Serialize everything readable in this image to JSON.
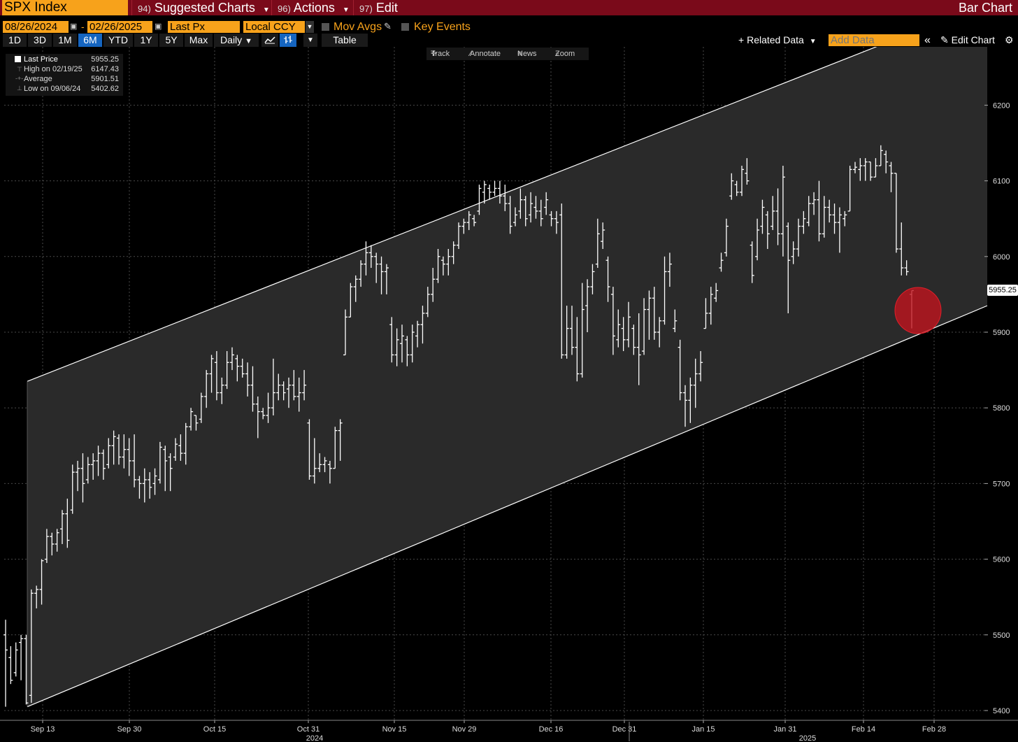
{
  "topbar": {
    "ticker": "SPX Index",
    "menus": [
      {
        "num": "94)",
        "label": "Suggested Charts"
      },
      {
        "num": "96)",
        "label": "Actions"
      },
      {
        "num": "97)",
        "label": "Edit"
      }
    ],
    "chart_kind": "Bar Chart"
  },
  "controls": {
    "start_date": "08/26/2024",
    "end_date": "02/26/2025",
    "field": "Last Px",
    "currency": "Local CCY",
    "mov_avgs": "Mov Avgs",
    "key_events": "Key Events"
  },
  "ranges": [
    "1D",
    "3D",
    "1M",
    "6M",
    "YTD",
    "1Y",
    "5Y",
    "Max"
  ],
  "active_range": "6M",
  "frequency": "Daily",
  "table_label": "Table",
  "related_data": "Related Data",
  "add_data_placeholder": "Add Data",
  "edit_chart": "Edit Chart",
  "chart_tools": [
    "Track",
    "Annotate",
    "News",
    "Zoom"
  ],
  "legend": {
    "rows": [
      {
        "label": "Last Price",
        "value": "5955.25"
      },
      {
        "label": "High on 02/19/25",
        "value": "6147.43"
      },
      {
        "label": "Average",
        "value": "5901.51"
      },
      {
        "label": "Low on 09/06/24",
        "value": "5402.62"
      }
    ]
  },
  "last_price_tag": "5955.25",
  "colors": {
    "accent_orange": "#f7a21b",
    "top_bar_red": "#7a0a1a",
    "active_blue": "#1565c0",
    "highlight_circle": "#c0141e"
  },
  "chart_data": {
    "type": "bar",
    "style": "ohlc",
    "title": "",
    "ylim": [
      5395,
      6270
    ],
    "y_ticks": [
      5400,
      5500,
      5600,
      5700,
      5800,
      5900,
      6000,
      6100,
      6200
    ],
    "x_ticks": [
      "Sep 13",
      "Sep 30",
      "Oct 15",
      "Oct 31",
      "Nov 15",
      "Nov 29",
      "Dec 16",
      "Dec 31",
      "Jan 15",
      "Jan 31",
      "Feb 14",
      "Feb 28"
    ],
    "year_labels": [
      "2024",
      "2025"
    ],
    "grid": true,
    "channel": {
      "upper": [
        5835,
        6335
      ],
      "lower": [
        5405,
        5935
      ]
    },
    "bars": [
      {
        "h": 5520,
        "l": 5405,
        "o": 5500,
        "c": 5480
      },
      {
        "h": 5485,
        "l": 5435,
        "o": 5470,
        "c": 5440
      },
      {
        "h": 5490,
        "l": 5445,
        "o": 5450,
        "c": 5480
      },
      {
        "h": 5500,
        "l": 5440,
        "o": 5490,
        "c": 5495
      },
      {
        "h": 5500,
        "l": 5408,
        "o": 5495,
        "c": 5410
      },
      {
        "h": 5560,
        "l": 5410,
        "o": 5420,
        "c": 5555
      },
      {
        "h": 5565,
        "l": 5535,
        "o": 5555,
        "c": 5560
      },
      {
        "h": 5600,
        "l": 5540,
        "o": 5560,
        "c": 5598
      },
      {
        "h": 5640,
        "l": 5595,
        "o": 5600,
        "c": 5630
      },
      {
        "h": 5635,
        "l": 5605,
        "o": 5630,
        "c": 5620
      },
      {
        "h": 5640,
        "l": 5610,
        "o": 5620,
        "c": 5635
      },
      {
        "h": 5665,
        "l": 5620,
        "o": 5640,
        "c": 5660
      },
      {
        "h": 5680,
        "l": 5615,
        "o": 5660,
        "c": 5625
      },
      {
        "h": 5725,
        "l": 5660,
        "o": 5665,
        "c": 5715
      },
      {
        "h": 5730,
        "l": 5690,
        "o": 5715,
        "c": 5720
      },
      {
        "h": 5740,
        "l": 5675,
        "o": 5720,
        "c": 5700
      },
      {
        "h": 5735,
        "l": 5700,
        "o": 5705,
        "c": 5725
      },
      {
        "h": 5740,
        "l": 5705,
        "o": 5725,
        "c": 5730
      },
      {
        "h": 5750,
        "l": 5710,
        "o": 5730,
        "c": 5740
      },
      {
        "h": 5745,
        "l": 5705,
        "o": 5740,
        "c": 5720
      },
      {
        "h": 5760,
        "l": 5720,
        "o": 5725,
        "c": 5750
      },
      {
        "h": 5770,
        "l": 5725,
        "o": 5750,
        "c": 5762
      },
      {
        "h": 5765,
        "l": 5725,
        "o": 5760,
        "c": 5735
      },
      {
        "h": 5765,
        "l": 5720,
        "o": 5735,
        "c": 5745
      },
      {
        "h": 5760,
        "l": 5710,
        "o": 5745,
        "c": 5730
      },
      {
        "h": 5765,
        "l": 5695,
        "o": 5730,
        "c": 5705
      },
      {
        "h": 5710,
        "l": 5680,
        "o": 5705,
        "c": 5700
      },
      {
        "h": 5720,
        "l": 5675,
        "o": 5700,
        "c": 5705
      },
      {
        "h": 5715,
        "l": 5680,
        "o": 5705,
        "c": 5695
      },
      {
        "h": 5720,
        "l": 5685,
        "o": 5700,
        "c": 5710
      },
      {
        "h": 5755,
        "l": 5700,
        "o": 5705,
        "c": 5748
      },
      {
        "h": 5750,
        "l": 5690,
        "o": 5745,
        "c": 5730
      },
      {
        "h": 5740,
        "l": 5690,
        "o": 5735,
        "c": 5720
      },
      {
        "h": 5760,
        "l": 5730,
        "o": 5735,
        "c": 5752
      },
      {
        "h": 5765,
        "l": 5730,
        "o": 5750,
        "c": 5740
      },
      {
        "h": 5780,
        "l": 5725,
        "o": 5740,
        "c": 5775
      },
      {
        "h": 5800,
        "l": 5770,
        "o": 5775,
        "c": 5795
      },
      {
        "h": 5790,
        "l": 5770,
        "o": 5790,
        "c": 5780
      },
      {
        "h": 5820,
        "l": 5780,
        "o": 5785,
        "c": 5815
      },
      {
        "h": 5850,
        "l": 5800,
        "o": 5815,
        "c": 5845
      },
      {
        "h": 5870,
        "l": 5820,
        "o": 5845,
        "c": 5865
      },
      {
        "h": 5875,
        "l": 5810,
        "o": 5860,
        "c": 5820
      },
      {
        "h": 5840,
        "l": 5805,
        "o": 5820,
        "c": 5830
      },
      {
        "h": 5875,
        "l": 5825,
        "o": 5830,
        "c": 5860
      },
      {
        "h": 5880,
        "l": 5850,
        "o": 5860,
        "c": 5870
      },
      {
        "h": 5870,
        "l": 5835,
        "o": 5865,
        "c": 5855
      },
      {
        "h": 5865,
        "l": 5840,
        "o": 5855,
        "c": 5845
      },
      {
        "h": 5860,
        "l": 5815,
        "o": 5845,
        "c": 5830
      },
      {
        "h": 5855,
        "l": 5795,
        "o": 5830,
        "c": 5805
      },
      {
        "h": 5815,
        "l": 5760,
        "o": 5805,
        "c": 5795
      },
      {
        "h": 5800,
        "l": 5785,
        "o": 5795,
        "c": 5790
      },
      {
        "h": 5820,
        "l": 5780,
        "o": 5790,
        "c": 5800
      },
      {
        "h": 5865,
        "l": 5790,
        "o": 5800,
        "c": 5820
      },
      {
        "h": 5845,
        "l": 5810,
        "o": 5820,
        "c": 5830
      },
      {
        "h": 5835,
        "l": 5810,
        "o": 5830,
        "c": 5820
      },
      {
        "h": 5840,
        "l": 5800,
        "o": 5825,
        "c": 5830
      },
      {
        "h": 5850,
        "l": 5810,
        "o": 5830,
        "c": 5815
      },
      {
        "h": 5840,
        "l": 5795,
        "o": 5815,
        "c": 5820
      },
      {
        "h": 5850,
        "l": 5810,
        "o": 5820,
        "c": 5830
      },
      {
        "h": 5785,
        "l": 5705,
        "o": 5780,
        "c": 5710
      },
      {
        "h": 5760,
        "l": 5700,
        "o": 5710,
        "c": 5720
      },
      {
        "h": 5740,
        "l": 5715,
        "o": 5720,
        "c": 5725
      },
      {
        "h": 5735,
        "l": 5715,
        "o": 5725,
        "c": 5730
      },
      {
        "h": 5730,
        "l": 5700,
        "o": 5725,
        "c": 5720
      },
      {
        "h": 5775,
        "l": 5720,
        "o": 5720,
        "c": 5770
      },
      {
        "h": 5785,
        "l": 5730,
        "o": 5770,
        "c": 5780
      },
      {
        "h": 5930,
        "l": 5870,
        "o": 5870,
        "c": 5920
      },
      {
        "h": 5965,
        "l": 5920,
        "o": 5920,
        "c": 5960
      },
      {
        "h": 5975,
        "l": 5940,
        "o": 5960,
        "c": 5970
      },
      {
        "h": 5995,
        "l": 5960,
        "o": 5970,
        "c": 5990
      },
      {
        "h": 6020,
        "l": 5975,
        "o": 5990,
        "c": 6005
      },
      {
        "h": 6015,
        "l": 5985,
        "o": 6005,
        "c": 6000
      },
      {
        "h": 6005,
        "l": 5965,
        "o": 6000,
        "c": 5990
      },
      {
        "h": 6000,
        "l": 5950,
        "o": 5990,
        "c": 5980
      },
      {
        "h": 5990,
        "l": 5950,
        "o": 5980,
        "c": 5985
      },
      {
        "h": 5920,
        "l": 5860,
        "o": 5910,
        "c": 5870
      },
      {
        "h": 5905,
        "l": 5855,
        "o": 5870,
        "c": 5890
      },
      {
        "h": 5910,
        "l": 5860,
        "o": 5885,
        "c": 5895
      },
      {
        "h": 5895,
        "l": 5855,
        "o": 5890,
        "c": 5870
      },
      {
        "h": 5910,
        "l": 5860,
        "o": 5870,
        "c": 5900
      },
      {
        "h": 5915,
        "l": 5880,
        "o": 5895,
        "c": 5910
      },
      {
        "h": 5935,
        "l": 5885,
        "o": 5910,
        "c": 5925
      },
      {
        "h": 5960,
        "l": 5920,
        "o": 5925,
        "c": 5950
      },
      {
        "h": 5985,
        "l": 5940,
        "o": 5950,
        "c": 5970
      },
      {
        "h": 6010,
        "l": 5965,
        "o": 5970,
        "c": 6000
      },
      {
        "h": 6000,
        "l": 5975,
        "o": 5995,
        "c": 5990
      },
      {
        "h": 6010,
        "l": 5975,
        "o": 5990,
        "c": 6000
      },
      {
        "h": 6020,
        "l": 5990,
        "o": 6000,
        "c": 6015
      },
      {
        "h": 6045,
        "l": 6010,
        "o": 6015,
        "c": 6040
      },
      {
        "h": 6050,
        "l": 6030,
        "o": 6040,
        "c": 6045
      },
      {
        "h": 6060,
        "l": 6035,
        "o": 6045,
        "c": 6055
      },
      {
        "h": 6055,
        "l": 6040,
        "o": 6050,
        "c": 6045
      },
      {
        "h": 6095,
        "l": 6055,
        "o": 6060,
        "c": 6090
      },
      {
        "h": 6100,
        "l": 6070,
        "o": 6085,
        "c": 6095
      },
      {
        "h": 6095,
        "l": 6075,
        "o": 6090,
        "c": 6085
      },
      {
        "h": 6100,
        "l": 6080,
        "o": 6085,
        "c": 6090
      },
      {
        "h": 6100,
        "l": 6070,
        "o": 6090,
        "c": 6080
      },
      {
        "h": 6095,
        "l": 6060,
        "o": 6080,
        "c": 6070
      },
      {
        "h": 6080,
        "l": 6030,
        "o": 6070,
        "c": 6040
      },
      {
        "h": 6065,
        "l": 6040,
        "o": 6045,
        "c": 6055
      },
      {
        "h": 6090,
        "l": 6050,
        "o": 6060,
        "c": 6075
      },
      {
        "h": 6080,
        "l": 6040,
        "o": 6075,
        "c": 6050
      },
      {
        "h": 6085,
        "l": 6045,
        "o": 6055,
        "c": 6070
      },
      {
        "h": 6080,
        "l": 6050,
        "o": 6065,
        "c": 6060
      },
      {
        "h": 6075,
        "l": 6040,
        "o": 6060,
        "c": 6050
      },
      {
        "h": 6085,
        "l": 6055,
        "o": 6065,
        "c": 6075
      },
      {
        "h": 6060,
        "l": 6040,
        "o": 6055,
        "c": 6050
      },
      {
        "h": 6060,
        "l": 6030,
        "o": 6050,
        "c": 6045
      },
      {
        "h": 6070,
        "l": 5865,
        "o": 6055,
        "c": 5870
      },
      {
        "h": 5935,
        "l": 5865,
        "o": 5870,
        "c": 5905
      },
      {
        "h": 5935,
        "l": 5870,
        "o": 5905,
        "c": 5880
      },
      {
        "h": 5920,
        "l": 5835,
        "o": 5880,
        "c": 5845
      },
      {
        "h": 5965,
        "l": 5840,
        "o": 5845,
        "c": 5930
      },
      {
        "h": 5970,
        "l": 5900,
        "o": 5935,
        "c": 5960
      },
      {
        "h": 5990,
        "l": 5950,
        "o": 5960,
        "c": 5980
      },
      {
        "h": 6050,
        "l": 5985,
        "o": 5990,
        "c": 6030
      },
      {
        "h": 6045,
        "l": 6010,
        "o": 6020,
        "c": 6035
      },
      {
        "h": 6000,
        "l": 5940,
        "o": 5995,
        "c": 5960
      },
      {
        "h": 5960,
        "l": 5870,
        "o": 5950,
        "c": 5895
      },
      {
        "h": 5930,
        "l": 5880,
        "o": 5890,
        "c": 5910
      },
      {
        "h": 5920,
        "l": 5875,
        "o": 5905,
        "c": 5890
      },
      {
        "h": 5940,
        "l": 5880,
        "o": 5890,
        "c": 5920
      },
      {
        "h": 5910,
        "l": 5870,
        "o": 5905,
        "c": 5880
      },
      {
        "h": 5925,
        "l": 5830,
        "o": 5880,
        "c": 5870
      },
      {
        "h": 5945,
        "l": 5870,
        "o": 5875,
        "c": 5930
      },
      {
        "h": 5955,
        "l": 5890,
        "o": 5930,
        "c": 5945
      },
      {
        "h": 5960,
        "l": 5890,
        "o": 5945,
        "c": 5900
      },
      {
        "h": 5920,
        "l": 5880,
        "o": 5900,
        "c": 5915
      },
      {
        "h": 6000,
        "l": 5910,
        "o": 5915,
        "c": 5980
      },
      {
        "h": 6005,
        "l": 5960,
        "o": 5980,
        "c": 5990
      },
      {
        "h": 5930,
        "l": 5900,
        "o": 5905,
        "c": 5915
      },
      {
        "h": 5890,
        "l": 5810,
        "o": 5880,
        "c": 5820
      },
      {
        "h": 5830,
        "l": 5775,
        "o": 5820,
        "c": 5810
      },
      {
        "h": 5840,
        "l": 5780,
        "o": 5810,
        "c": 5830
      },
      {
        "h": 5865,
        "l": 5800,
        "o": 5830,
        "c": 5845
      },
      {
        "h": 5875,
        "l": 5835,
        "o": 5845,
        "c": 5860
      },
      {
        "h": 5945,
        "l": 5905,
        "o": 5905,
        "c": 5925
      },
      {
        "h": 5960,
        "l": 5910,
        "o": 5925,
        "c": 5950
      },
      {
        "h": 5965,
        "l": 5940,
        "o": 5945,
        "c": 5955
      },
      {
        "h": 6005,
        "l": 5980,
        "o": 5985,
        "c": 5995
      },
      {
        "h": 6050,
        "l": 6000,
        "o": 6005,
        "c": 6040
      },
      {
        "h": 6110,
        "l": 6075,
        "o": 6080,
        "c": 6100
      },
      {
        "h": 6100,
        "l": 6080,
        "o": 6095,
        "c": 6085
      },
      {
        "h": 6120,
        "l": 6080,
        "o": 6085,
        "c": 6115
      },
      {
        "h": 6130,
        "l": 6095,
        "o": 6110,
        "c": 6100
      },
      {
        "h": 6020,
        "l": 5965,
        "o": 6015,
        "c": 5975
      },
      {
        "h": 6050,
        "l": 5995,
        "o": 6000,
        "c": 6035
      },
      {
        "h": 6075,
        "l": 6030,
        "o": 6040,
        "c": 6065
      },
      {
        "h": 6060,
        "l": 6010,
        "o": 6055,
        "c": 6030
      },
      {
        "h": 6080,
        "l": 6035,
        "o": 6040,
        "c": 6060
      },
      {
        "h": 6090,
        "l": 6015,
        "o": 6060,
        "c": 6030
      },
      {
        "h": 6120,
        "l": 6000,
        "o": 6030,
        "c": 6105
      },
      {
        "h": 6045,
        "l": 5925,
        "o": 6040,
        "c": 5995
      },
      {
        "h": 6020,
        "l": 5990,
        "o": 6000,
        "c": 6010
      },
      {
        "h": 6050,
        "l": 6000,
        "o": 6010,
        "c": 6040
      },
      {
        "h": 6060,
        "l": 6030,
        "o": 6040,
        "c": 6050
      },
      {
        "h": 6080,
        "l": 6040,
        "o": 6045,
        "c": 6070
      },
      {
        "h": 6085,
        "l": 6055,
        "o": 6070,
        "c": 6075
      },
      {
        "h": 6100,
        "l": 6020,
        "o": 6075,
        "c": 6030
      },
      {
        "h": 6080,
        "l": 6025,
        "o": 6030,
        "c": 6065
      },
      {
        "h": 6075,
        "l": 6045,
        "o": 6065,
        "c": 6055
      },
      {
        "h": 6070,
        "l": 6030,
        "o": 6055,
        "c": 6045
      },
      {
        "h": 6065,
        "l": 6005,
        "o": 6045,
        "c": 6055
      },
      {
        "h": 6060,
        "l": 6040,
        "o": 6050,
        "c": 6055
      },
      {
        "h": 6120,
        "l": 6060,
        "o": 6060,
        "c": 6115
      },
      {
        "h": 6125,
        "l": 6110,
        "o": 6115,
        "c": 6118
      },
      {
        "h": 6130,
        "l": 6100,
        "o": 6115,
        "c": 6120
      },
      {
        "h": 6130,
        "l": 6100,
        "o": 6120,
        "c": 6125
      },
      {
        "h": 6125,
        "l": 6100,
        "o": 6125,
        "c": 6105
      },
      {
        "h": 6130,
        "l": 6105,
        "o": 6105,
        "c": 6120
      },
      {
        "h": 6147,
        "l": 6120,
        "o": 6120,
        "c": 6140
      },
      {
        "h": 6140,
        "l": 6110,
        "o": 6135,
        "c": 6125
      },
      {
        "h": 6125,
        "l": 6085,
        "o": 6120,
        "c": 6110
      },
      {
        "h": 6110,
        "l": 6005,
        "o": 6110,
        "c": 6010
      },
      {
        "h": 6045,
        "l": 5975,
        "o": 6010,
        "c": 5985
      },
      {
        "h": 5995,
        "l": 5975,
        "o": 5985,
        "c": 5980
      },
      {
        "h": 5955,
        "l": 5905,
        "o": 5950,
        "c": 5955
      }
    ]
  }
}
